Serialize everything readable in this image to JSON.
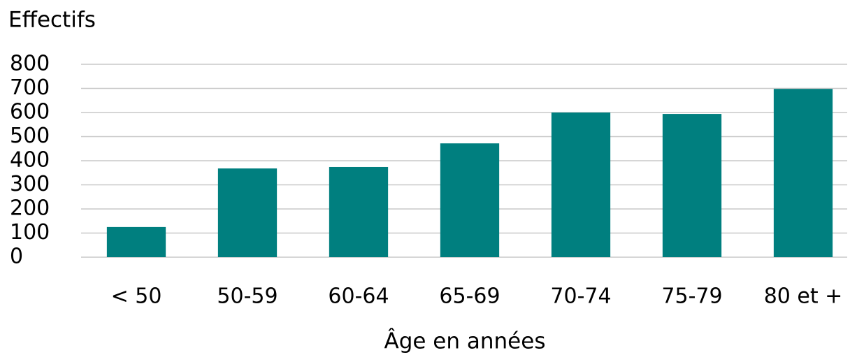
{
  "chart_data": {
    "type": "bar",
    "title": "Effectifs",
    "x_label": "Âge en années",
    "categories": [
      "< 50",
      "50-59",
      "60-64",
      "65-69",
      "70-74",
      "75-79",
      "80 et +"
    ],
    "values": [
      125,
      368,
      374,
      472,
      600,
      594,
      698
    ],
    "color": "#007f7f",
    "ylim": [
      0,
      800
    ],
    "yticks": [
      0,
      100,
      200,
      300,
      400,
      500,
      600,
      700,
      800
    ],
    "grid": true
  }
}
